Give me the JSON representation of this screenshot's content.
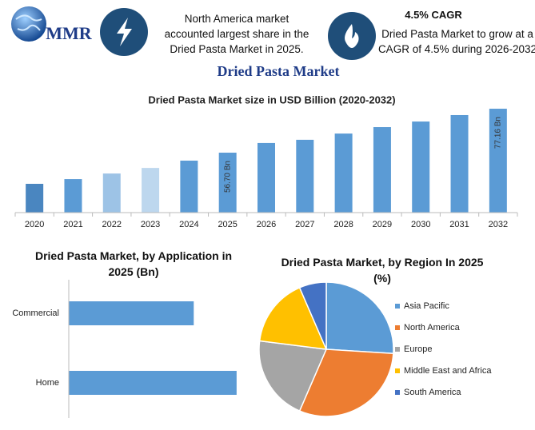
{
  "header": {
    "logo": "MMR",
    "highlight_1": "North America market accounted largest share in the Dried Pasta Market in 2025.",
    "highlight_2_title": "4.5% CAGR",
    "highlight_2": "Dried Pasta Market to grow at a CAGR of 4.5% during 2026-2032"
  },
  "title": "Dried Pasta Market",
  "chart_data": [
    {
      "type": "bar",
      "title": "Dried Pasta Market size in USD Billion (2020-2032)",
      "categories": [
        "2020",
        "2021",
        "2022",
        "2023",
        "2024",
        "2025",
        "2026",
        "2027",
        "2028",
        "2029",
        "2030",
        "2031",
        "2032"
      ],
      "values": [
        42.2,
        44.4,
        47.0,
        49.6,
        53.0,
        56.7,
        61.2,
        62.7,
        65.6,
        68.6,
        71.2,
        74.2,
        77.16
      ],
      "value_labels": [
        null,
        null,
        null,
        null,
        null,
        "56.70 Bn",
        null,
        null,
        null,
        null,
        null,
        null,
        "77.16 Bn"
      ],
      "colors": [
        "#4a86c0",
        "#5b9bd5",
        "#9dc3e6",
        "#bdd7ee",
        "#5b9bd5",
        "#5b9bd5",
        "#5b9bd5",
        "#5b9bd5",
        "#5b9bd5",
        "#5b9bd5",
        "#5b9bd5",
        "#5b9bd5",
        "#5b9bd5"
      ],
      "ylim": [
        28.8,
        80
      ]
    },
    {
      "type": "hbar",
      "title": "Dried Pasta Market, by Application in 2025 (Bn)",
      "categories": [
        "Commercial",
        "Home"
      ],
      "values": [
        24.2,
        32.5
      ],
      "color": "#5b9bd5",
      "xlim": [
        0,
        35
      ]
    },
    {
      "type": "pie",
      "title": "Dried Pasta Market, by Region In 2025 (%)",
      "categories": [
        "Asia Pacific",
        "North America",
        "Europe",
        "Middle East and Africa",
        "South America"
      ],
      "values": [
        26,
        30.5,
        20.5,
        16.5,
        6.5
      ],
      "colors": [
        "#5b9bd5",
        "#ed7d31",
        "#a5a5a5",
        "#ffc000",
        "#4472c4"
      ]
    }
  ]
}
